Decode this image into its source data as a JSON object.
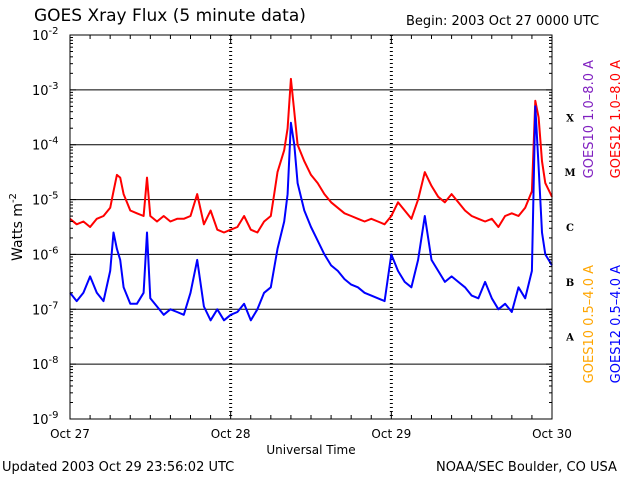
{
  "header": {
    "title": "GOES Xray Flux (5 minute data)",
    "begin": "Begin:  2003 Oct 27 0000 UTC"
  },
  "footer": {
    "updated": "Updated 2003 Oct 29 23:56:02 UTC",
    "credit": "NOAA/SEC Boulder, CO USA"
  },
  "colors": {
    "goes10_long": "#8020c0",
    "goes12_long": "#ff0000",
    "goes10_short": "#ffa500",
    "goes12_short": "#0000ff",
    "axis": "#000000"
  },
  "chart_data": {
    "type": "line",
    "title": "GOES Xray Flux (5 minute data)",
    "xlabel": "Universal Time",
    "ylabel": "Watts m",
    "ylabel_sup": "-2",
    "yscale": "log",
    "ylim_exp": [
      -9,
      -2
    ],
    "y_ticks": [
      {
        "exp": -9,
        "base": "10",
        "sup": "-9"
      },
      {
        "exp": -8,
        "base": "10",
        "sup": "-8"
      },
      {
        "exp": -7,
        "base": "10",
        "sup": "-7"
      },
      {
        "exp": -6,
        "base": "10",
        "sup": "-6"
      },
      {
        "exp": -5,
        "base": "10",
        "sup": "-5"
      },
      {
        "exp": -4,
        "base": "10",
        "sup": "-4"
      },
      {
        "exp": -3,
        "base": "10",
        "sup": "-3"
      },
      {
        "exp": -2,
        "base": "10",
        "sup": "-2"
      }
    ],
    "xlim_hours": [
      0,
      72
    ],
    "x_ticks": [
      {
        "hour": 0,
        "label": "Oct 27"
      },
      {
        "hour": 24,
        "label": "Oct 28"
      },
      {
        "hour": 48,
        "label": "Oct 29"
      },
      {
        "hour": 72,
        "label": "Oct 30"
      }
    ],
    "flare_classes": [
      {
        "label": "A",
        "exp": -7.5
      },
      {
        "label": "B",
        "exp": -6.5
      },
      {
        "label": "C",
        "exp": -5.5
      },
      {
        "label": "M",
        "exp": -4.5
      },
      {
        "label": "X",
        "exp": -3.5
      }
    ],
    "grid_levels_exp": [
      -8,
      -7,
      -6,
      -5,
      -4,
      -3
    ],
    "legend_right": [
      {
        "text": "GOES10 1.0–8.0 A",
        "color": "#8020c0"
      },
      {
        "text": "GOES12 1.0–8.0 A",
        "color": "#ff0000"
      }
    ],
    "legend_bottom_right": [
      {
        "text": "GOES10 0.5–4.0 A",
        "color": "#ffa500"
      },
      {
        "text": "GOES12 0.5–4.0 A",
        "color": "#0000ff"
      }
    ],
    "series": [
      {
        "name": "GOES12 1.0-8.0 A",
        "color": "#ff0000",
        "points": [
          [
            0,
            -5.35
          ],
          [
            1,
            -5.45
          ],
          [
            2,
            -5.4
          ],
          [
            3,
            -5.5
          ],
          [
            4,
            -5.35
          ],
          [
            5,
            -5.3
          ],
          [
            6,
            -5.15
          ],
          [
            6.5,
            -4.85
          ],
          [
            7,
            -4.55
          ],
          [
            7.5,
            -4.6
          ],
          [
            8,
            -4.9
          ],
          [
            9,
            -5.2
          ],
          [
            10,
            -5.25
          ],
          [
            11,
            -5.3
          ],
          [
            11.5,
            -4.6
          ],
          [
            12,
            -5.3
          ],
          [
            13,
            -5.4
          ],
          [
            14,
            -5.3
          ],
          [
            15,
            -5.4
          ],
          [
            16,
            -5.35
          ],
          [
            17,
            -5.35
          ],
          [
            18,
            -5.3
          ],
          [
            19,
            -4.9
          ],
          [
            20,
            -5.45
          ],
          [
            21,
            -5.2
          ],
          [
            22,
            -5.55
          ],
          [
            23,
            -5.6
          ],
          [
            24,
            -5.55
          ],
          [
            25,
            -5.5
          ],
          [
            26,
            -5.3
          ],
          [
            27,
            -5.55
          ],
          [
            28,
            -5.6
          ],
          [
            29,
            -5.4
          ],
          [
            30,
            -5.3
          ],
          [
            30.5,
            -4.9
          ],
          [
            31,
            -4.5
          ],
          [
            32,
            -4.1
          ],
          [
            32.5,
            -3.7
          ],
          [
            33,
            -2.8
          ],
          [
            33.5,
            -3.4
          ],
          [
            34,
            -4.0
          ],
          [
            35,
            -4.3
          ],
          [
            36,
            -4.55
          ],
          [
            37,
            -4.7
          ],
          [
            38,
            -4.9
          ],
          [
            39,
            -5.05
          ],
          [
            40,
            -5.15
          ],
          [
            41,
            -5.25
          ],
          [
            42,
            -5.3
          ],
          [
            43,
            -5.35
          ],
          [
            44,
            -5.4
          ],
          [
            45,
            -5.35
          ],
          [
            46,
            -5.4
          ],
          [
            47,
            -5.45
          ],
          [
            48,
            -5.3
          ],
          [
            49,
            -5.05
          ],
          [
            50,
            -5.2
          ],
          [
            51,
            -5.35
          ],
          [
            52,
            -5.0
          ],
          [
            53,
            -4.5
          ],
          [
            54,
            -4.75
          ],
          [
            55,
            -4.95
          ],
          [
            56,
            -5.05
          ],
          [
            57,
            -4.9
          ],
          [
            58,
            -5.05
          ],
          [
            59,
            -5.2
          ],
          [
            60,
            -5.3
          ],
          [
            61,
            -5.35
          ],
          [
            62,
            -5.4
          ],
          [
            63,
            -5.35
          ],
          [
            64,
            -5.5
          ],
          [
            65,
            -5.3
          ],
          [
            66,
            -5.25
          ],
          [
            67,
            -5.3
          ],
          [
            68,
            -5.15
          ],
          [
            69,
            -4.85
          ],
          [
            69.5,
            -3.2
          ],
          [
            70,
            -3.5
          ],
          [
            70.5,
            -4.3
          ],
          [
            71,
            -4.7
          ],
          [
            72,
            -4.95
          ]
        ]
      },
      {
        "name": "GOES12 0.5-4.0 A",
        "color": "#0000ff",
        "points": [
          [
            0,
            -6.7
          ],
          [
            1,
            -6.85
          ],
          [
            2,
            -6.7
          ],
          [
            3,
            -6.4
          ],
          [
            4,
            -6.7
          ],
          [
            5,
            -6.85
          ],
          [
            6,
            -6.3
          ],
          [
            6.5,
            -5.6
          ],
          [
            7,
            -5.9
          ],
          [
            7.5,
            -6.1
          ],
          [
            8,
            -6.6
          ],
          [
            9,
            -6.9
          ],
          [
            10,
            -6.9
          ],
          [
            11,
            -6.7
          ],
          [
            11.5,
            -5.6
          ],
          [
            12,
            -6.8
          ],
          [
            13,
            -6.95
          ],
          [
            14,
            -7.1
          ],
          [
            15,
            -7.0
          ],
          [
            16,
            -7.05
          ],
          [
            17,
            -7.1
          ],
          [
            18,
            -6.7
          ],
          [
            19,
            -6.1
          ],
          [
            20,
            -6.95
          ],
          [
            21,
            -7.2
          ],
          [
            22,
            -7.0
          ],
          [
            23,
            -7.2
          ],
          [
            24,
            -7.1
          ],
          [
            25,
            -7.05
          ],
          [
            26,
            -6.9
          ],
          [
            27,
            -7.2
          ],
          [
            28,
            -7.0
          ],
          [
            29,
            -6.7
          ],
          [
            30,
            -6.6
          ],
          [
            31,
            -5.9
          ],
          [
            32,
            -5.4
          ],
          [
            32.5,
            -4.9
          ],
          [
            33,
            -3.6
          ],
          [
            33.5,
            -4.0
          ],
          [
            34,
            -4.7
          ],
          [
            35,
            -5.2
          ],
          [
            36,
            -5.5
          ],
          [
            37,
            -5.75
          ],
          [
            38,
            -6.0
          ],
          [
            39,
            -6.2
          ],
          [
            40,
            -6.3
          ],
          [
            41,
            -6.45
          ],
          [
            42,
            -6.55
          ],
          [
            43,
            -6.6
          ],
          [
            44,
            -6.7
          ],
          [
            45,
            -6.75
          ],
          [
            46,
            -6.8
          ],
          [
            47,
            -6.85
          ],
          [
            48,
            -6.0
          ],
          [
            49,
            -6.3
          ],
          [
            50,
            -6.5
          ],
          [
            51,
            -6.6
          ],
          [
            52,
            -6.1
          ],
          [
            53,
            -5.3
          ],
          [
            54,
            -6.1
          ],
          [
            55,
            -6.3
          ],
          [
            56,
            -6.5
          ],
          [
            57,
            -6.4
          ],
          [
            58,
            -6.5
          ],
          [
            59,
            -6.6
          ],
          [
            60,
            -6.75
          ],
          [
            61,
            -6.8
          ],
          [
            62,
            -6.5
          ],
          [
            63,
            -6.8
          ],
          [
            64,
            -7.0
          ],
          [
            65,
            -6.9
          ],
          [
            66,
            -7.05
          ],
          [
            67,
            -6.6
          ],
          [
            68,
            -6.8
          ],
          [
            69,
            -6.3
          ],
          [
            69.5,
            -3.3
          ],
          [
            70,
            -4.4
          ],
          [
            70.5,
            -5.6
          ],
          [
            71,
            -6.0
          ],
          [
            72,
            -6.2
          ]
        ]
      }
    ]
  }
}
